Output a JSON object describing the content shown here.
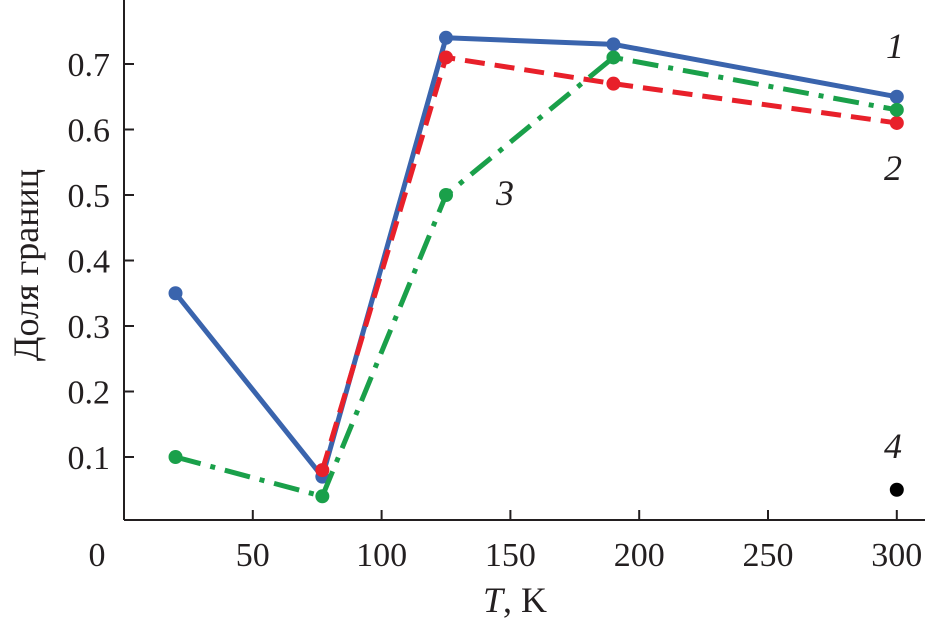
{
  "chart_data": {
    "type": "line",
    "xlabel_italic": "T",
    "xlabel_rest": ", K",
    "ylabel": "Доля границ",
    "xlim": [
      0,
      310
    ],
    "ylim": [
      0,
      0.8
    ],
    "x_ticks": [
      0,
      50,
      100,
      150,
      200,
      250,
      300
    ],
    "y_ticks": [
      0.1,
      0.2,
      0.3,
      0.4,
      0.5,
      0.6,
      0.7
    ],
    "grid": false,
    "series": [
      {
        "name": "1",
        "color": "#3a64ad",
        "style": "solid",
        "x": [
          20,
          77,
          125,
          190,
          300
        ],
        "y": [
          0.35,
          0.07,
          0.74,
          0.73,
          0.65
        ]
      },
      {
        "name": "2",
        "color": "#e8202a",
        "style": "dashed",
        "x": [
          77,
          125,
          190,
          300
        ],
        "y": [
          0.08,
          0.71,
          0.67,
          0.61
        ]
      },
      {
        "name": "3",
        "color": "#1aa04a",
        "style": "dashdot",
        "x": [
          20,
          77,
          125,
          190,
          300
        ],
        "y": [
          0.1,
          0.04,
          0.5,
          0.71,
          0.63
        ]
      },
      {
        "name": "4",
        "color": "#000000",
        "style": "point",
        "x": [
          300
        ],
        "y": [
          0.05
        ]
      }
    ]
  }
}
